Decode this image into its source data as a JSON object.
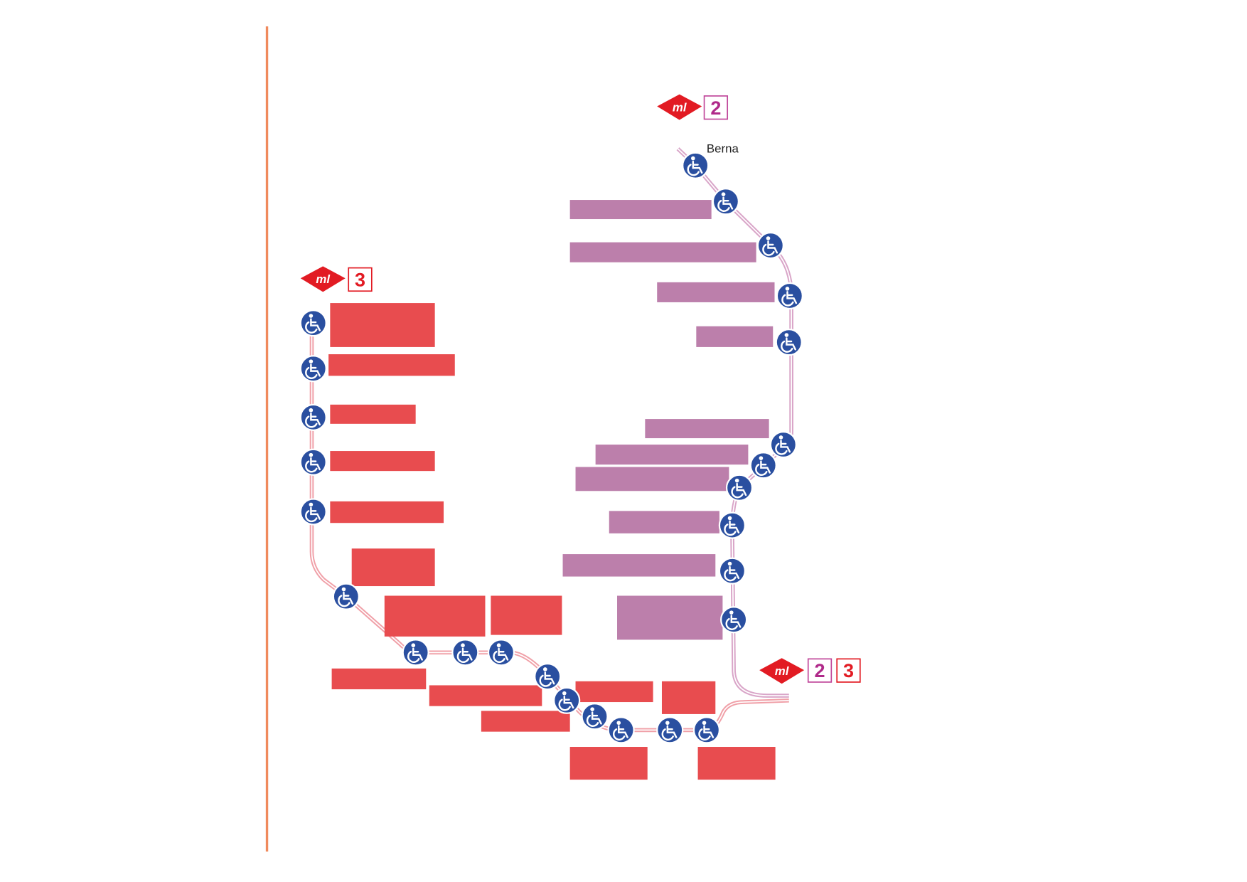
{
  "badges": [
    {
      "logo": "ml",
      "lines": [
        "2"
      ]
    },
    {
      "logo": "ml",
      "lines": [
        "3"
      ]
    },
    {
      "logo": "ml",
      "lines": [
        "2",
        "3"
      ]
    }
  ],
  "stations": [
    "Berna"
  ]
}
